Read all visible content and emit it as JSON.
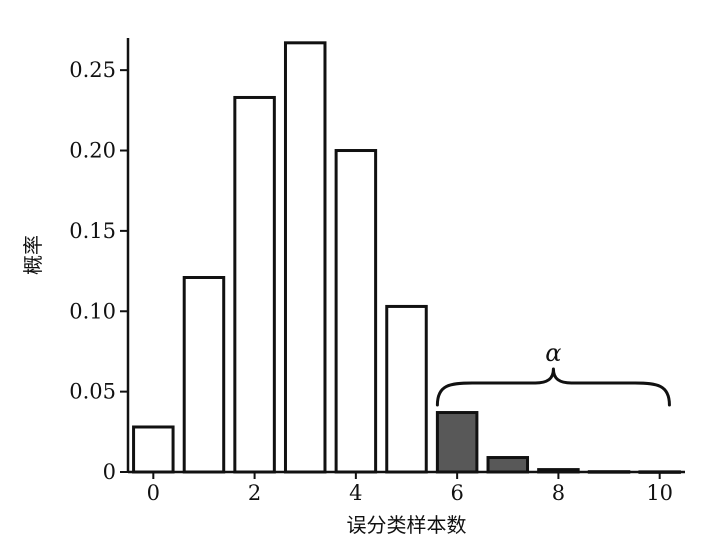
{
  "chart_data": {
    "type": "bar",
    "categories": [
      "0",
      "1",
      "2",
      "3",
      "4",
      "5",
      "6",
      "7",
      "8",
      "9",
      "10"
    ],
    "values": [
      0.028,
      0.121,
      0.233,
      0.267,
      0.2,
      0.103,
      0.037,
      0.009,
      0.0015,
      0.0002,
      0.0001
    ],
    "highlighted_categories": [
      "6",
      "7",
      "8",
      "9",
      "10"
    ],
    "xlabel": "误分类样本数",
    "ylabel": "概率",
    "xlim": [
      -0.5,
      10.5
    ],
    "ylim": [
      0,
      0.27
    ],
    "x_ticks": [
      0,
      2,
      4,
      6,
      8,
      10
    ],
    "x_tick_labels": [
      "0",
      "2",
      "4",
      "6",
      "8",
      "10"
    ],
    "y_ticks": [
      0,
      0.05,
      0.1,
      0.15,
      0.2,
      0.25
    ],
    "y_tick_labels": [
      "0",
      "0.05",
      "0.10",
      "0.15",
      "0.20",
      "0.25"
    ],
    "grid": false,
    "annotation": {
      "label": "α",
      "span": [
        "6",
        "10"
      ],
      "shape": "curly-brace"
    },
    "colors": {
      "bar_fill": "#ffffff",
      "highlight_fill": "#585858",
      "stroke": "#111111"
    }
  }
}
